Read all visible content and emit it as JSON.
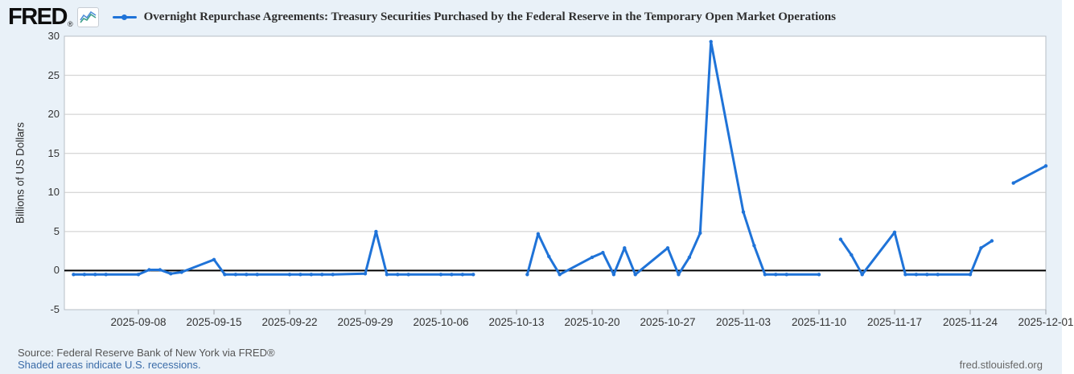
{
  "header": {
    "logo_text": "FRED",
    "registered_mark": "®"
  },
  "colors": {
    "page_bg": "#e9f1f8",
    "plot_bg": "#ffffff",
    "plot_border": "#b7bec6",
    "line": "#1f73d8",
    "grid": "#cccccc",
    "zero_line": "#000000",
    "tick_text": "#333333",
    "link": "#3b6ca8",
    "muted_text": "#555555"
  },
  "chart_data": {
    "type": "line",
    "title": "Overnight Repurchase Agreements: Treasury Securities Purchased by the Federal Reserve in the Temporary Open Market Operations",
    "ylabel": "Billions of US Dollars",
    "ylim": [
      -5,
      30
    ],
    "y_ticks": [
      30,
      25,
      20,
      15,
      10,
      5,
      0,
      -5
    ],
    "x_tick_labels": [
      "2025-09-08",
      "2025-09-15",
      "2025-09-22",
      "2025-09-29",
      "2025-10-06",
      "2025-10-13",
      "2025-10-20",
      "2025-10-27",
      "2025-11-03",
      "2025-11-10",
      "2025-11-17",
      "2025-11-24",
      "2025-12-01"
    ],
    "grid": true,
    "legend_position": "top",
    "marker": "dot",
    "segments": [
      [
        [
          "2025-09-02",
          -0.5
        ],
        [
          "2025-09-03",
          -0.5
        ],
        [
          "2025-09-04",
          -0.5
        ],
        [
          "2025-09-05",
          -0.5
        ],
        [
          "2025-09-08",
          -0.5
        ],
        [
          "2025-09-09",
          0.1
        ],
        [
          "2025-09-10",
          0.1
        ],
        [
          "2025-09-11",
          -0.4
        ],
        [
          "2025-09-12",
          -0.2
        ],
        [
          "2025-09-15",
          1.4
        ],
        [
          "2025-09-16",
          -0.5
        ],
        [
          "2025-09-17",
          -0.5
        ],
        [
          "2025-09-18",
          -0.5
        ],
        [
          "2025-09-19",
          -0.5
        ],
        [
          "2025-09-22",
          -0.5
        ],
        [
          "2025-09-23",
          -0.5
        ],
        [
          "2025-09-24",
          -0.5
        ],
        [
          "2025-09-25",
          -0.5
        ],
        [
          "2025-09-26",
          -0.5
        ],
        [
          "2025-09-29",
          -0.4
        ],
        [
          "2025-09-30",
          5.0
        ],
        [
          "2025-10-01",
          -0.5
        ],
        [
          "2025-10-02",
          -0.5
        ],
        [
          "2025-10-03",
          -0.5
        ],
        [
          "2025-10-06",
          -0.5
        ],
        [
          "2025-10-07",
          -0.5
        ],
        [
          "2025-10-08",
          -0.5
        ],
        [
          "2025-10-09",
          -0.5
        ]
      ],
      [
        [
          "2025-10-14",
          -0.5
        ],
        [
          "2025-10-15",
          4.7
        ],
        [
          "2025-10-16",
          1.8
        ],
        [
          "2025-10-17",
          -0.5
        ],
        [
          "2025-10-20",
          1.7
        ],
        [
          "2025-10-21",
          2.3
        ],
        [
          "2025-10-22",
          -0.5
        ],
        [
          "2025-10-23",
          2.9
        ],
        [
          "2025-10-24",
          -0.5
        ],
        [
          "2025-10-27",
          2.9
        ],
        [
          "2025-10-28",
          -0.5
        ],
        [
          "2025-10-29",
          1.7
        ],
        [
          "2025-10-30",
          4.8
        ],
        [
          "2025-10-31",
          29.3
        ],
        [
          "2025-11-03",
          7.5
        ],
        [
          "2025-11-04",
          3.2
        ],
        [
          "2025-11-05",
          -0.5
        ],
        [
          "2025-11-06",
          -0.5
        ],
        [
          "2025-11-07",
          -0.5
        ],
        [
          "2025-11-10",
          -0.5
        ]
      ],
      [
        [
          "2025-11-12",
          4.0
        ],
        [
          "2025-11-13",
          2.0
        ],
        [
          "2025-11-14",
          -0.5
        ],
        [
          "2025-11-17",
          4.9
        ],
        [
          "2025-11-18",
          -0.5
        ],
        [
          "2025-11-19",
          -0.5
        ],
        [
          "2025-11-20",
          -0.5
        ],
        [
          "2025-11-21",
          -0.5
        ],
        [
          "2025-11-24",
          -0.5
        ],
        [
          "2025-11-25",
          2.9
        ],
        [
          "2025-11-26",
          3.8
        ]
      ],
      [
        [
          "2025-11-28",
          11.2
        ],
        [
          "2025-12-01",
          13.4
        ]
      ]
    ]
  },
  "footer": {
    "source_text": "Source: Federal Reserve Bank of New York via FRED®",
    "recessions_link": "Shaded areas indicate U.S. recessions.",
    "site_text": "fred.stlouisfed.org"
  }
}
